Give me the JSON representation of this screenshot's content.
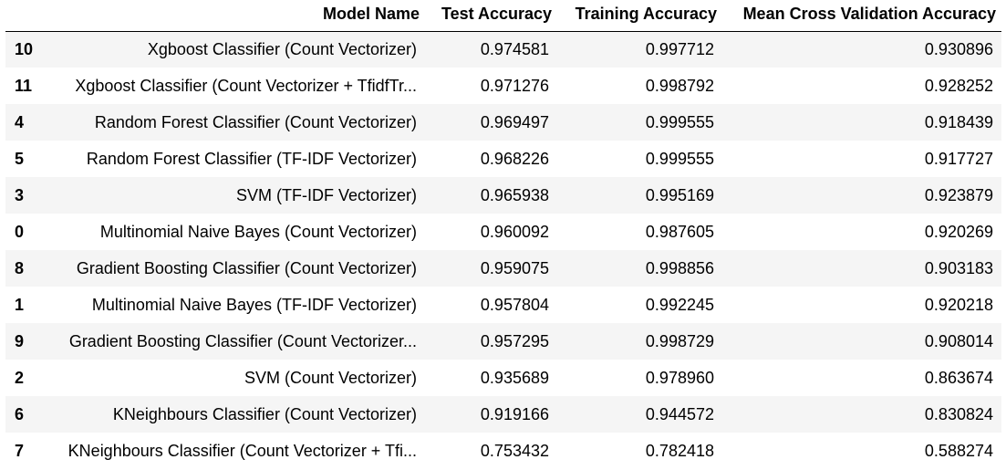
{
  "table": {
    "headers": {
      "index": "",
      "model_name": "Model Name",
      "test_accuracy": "Test Accuracy",
      "training_accuracy": "Training Accuracy",
      "mean_cv_accuracy": "Mean Cross Validation Accuracy"
    },
    "rows": [
      {
        "index": "10",
        "model_name": "Xgboost Classifier (Count Vectorizer)",
        "test_accuracy": "0.974581",
        "training_accuracy": "0.997712",
        "mean_cv_accuracy": "0.930896"
      },
      {
        "index": "11",
        "model_name": "Xgboost Classifier (Count Vectorizer + TfidfTr...",
        "test_accuracy": "0.971276",
        "training_accuracy": "0.998792",
        "mean_cv_accuracy": "0.928252"
      },
      {
        "index": "4",
        "model_name": "Random Forest Classifier (Count Vectorizer)",
        "test_accuracy": "0.969497",
        "training_accuracy": "0.999555",
        "mean_cv_accuracy": "0.918439"
      },
      {
        "index": "5",
        "model_name": "Random Forest Classifier (TF-IDF Vectorizer)",
        "test_accuracy": "0.968226",
        "training_accuracy": "0.999555",
        "mean_cv_accuracy": "0.917727"
      },
      {
        "index": "3",
        "model_name": "SVM (TF-IDF Vectorizer)",
        "test_accuracy": "0.965938",
        "training_accuracy": "0.995169",
        "mean_cv_accuracy": "0.923879"
      },
      {
        "index": "0",
        "model_name": "Multinomial Naive Bayes (Count Vectorizer)",
        "test_accuracy": "0.960092",
        "training_accuracy": "0.987605",
        "mean_cv_accuracy": "0.920269"
      },
      {
        "index": "8",
        "model_name": "Gradient Boosting Classifier (Count Vectorizer)",
        "test_accuracy": "0.959075",
        "training_accuracy": "0.998856",
        "mean_cv_accuracy": "0.903183"
      },
      {
        "index": "1",
        "model_name": "Multinomial Naive Bayes (TF-IDF Vectorizer)",
        "test_accuracy": "0.957804",
        "training_accuracy": "0.992245",
        "mean_cv_accuracy": "0.920218"
      },
      {
        "index": "9",
        "model_name": "Gradient Boosting Classifier (Count Vectorizer...",
        "test_accuracy": "0.957295",
        "training_accuracy": "0.998729",
        "mean_cv_accuracy": "0.908014"
      },
      {
        "index": "2",
        "model_name": "SVM (Count Vectorizer)",
        "test_accuracy": "0.935689",
        "training_accuracy": "0.978960",
        "mean_cv_accuracy": "0.863674"
      },
      {
        "index": "6",
        "model_name": "KNeighbours Classifier (Count Vectorizer)",
        "test_accuracy": "0.919166",
        "training_accuracy": "0.944572",
        "mean_cv_accuracy": "0.830824"
      },
      {
        "index": "7",
        "model_name": "KNeighbours Classifier (Count Vectorizer + Tfi...",
        "test_accuracy": "0.753432",
        "training_accuracy": "0.782418",
        "mean_cv_accuracy": "0.588274"
      }
    ]
  }
}
